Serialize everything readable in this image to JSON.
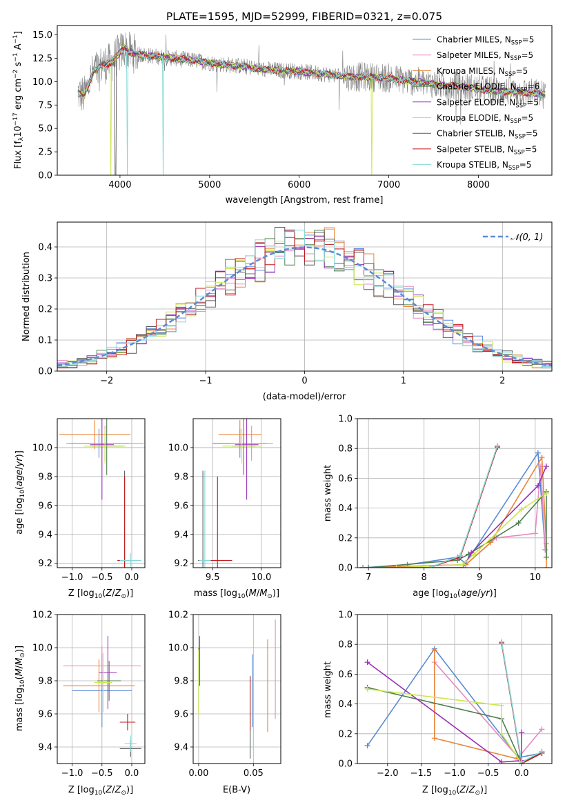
{
  "colors": {
    "chabrier_miles": "#5b8ad6",
    "salpeter_miles": "#e48bc0",
    "kroupa_miles": "#e8853a",
    "chabrier_elodie": "#4f7d4f",
    "salpeter_elodie": "#9a2fb8",
    "kroupa_elodie": "#c9e84a",
    "chabrier_stelib": "#5a5a5a",
    "salpeter_stelib": "#c21a1a",
    "kroupa_stelib": "#86d8d8",
    "gaussian": "#5b8ad6",
    "data": "#808080"
  },
  "chart_data": [
    {
      "id": "spectrum",
      "type": "line",
      "title": "PLATE=1595, MJD=52999, FIBERID=0321, z=0.075",
      "xlabel": "wavelength [Angstrom, rest frame]",
      "ylabel": "Flux [fλ10⁻¹⁷ erg cm⁻² s⁻¹ A⁻¹]",
      "xlim": [
        3300,
        8820
      ],
      "ylim": [
        0,
        16
      ],
      "xticks": [
        "4000",
        "5000",
        "6000",
        "7000",
        "8000"
      ],
      "yticks": [
        "0.0",
        "2.5",
        "5.0",
        "7.5",
        "10.0",
        "12.5",
        "15.0"
      ],
      "continuum": {
        "x": [
          3530,
          3600,
          3700,
          3800,
          3900,
          3950,
          4000,
          4050,
          4100,
          4200,
          4400,
          4600,
          4800,
          5000,
          5200,
          5400,
          5600,
          5800,
          6000,
          6200,
          6400,
          6600,
          6800,
          7000,
          7200,
          7400,
          7600,
          7800,
          8000,
          8200,
          8400,
          8600,
          8750
        ],
        "y": [
          8.8,
          8.5,
          11.0,
          11.8,
          12.0,
          12.6,
          13.1,
          13.6,
          13.2,
          12.9,
          12.7,
          12.5,
          12.3,
          12.0,
          11.8,
          11.6,
          11.3,
          11.2,
          11.1,
          10.9,
          10.7,
          10.5,
          10.5,
          10.4,
          10.1,
          9.9,
          9.6,
          9.5,
          9.2,
          9.0,
          8.9,
          8.8,
          8.6
        ]
      },
      "legend": [
        {
          "label": "Chabrier MILES, N",
          "sub": "SSP",
          "tail": "=5",
          "color_key": "chabrier_miles"
        },
        {
          "label": "Salpeter MILES, N",
          "sub": "SSP",
          "tail": "=5",
          "color_key": "salpeter_miles"
        },
        {
          "label": "Kroupa MILES, N",
          "sub": "SSP",
          "tail": "=5",
          "color_key": "kroupa_miles"
        },
        {
          "label": "Chabrier ELODIE, N",
          "sub": "SSP",
          "tail": "=6",
          "color_key": "chabrier_elodie"
        },
        {
          "label": "Salpeter ELODIE, N",
          "sub": "SSP",
          "tail": "=5",
          "color_key": "salpeter_elodie"
        },
        {
          "label": "Kroupa ELODIE, N",
          "sub": "SSP",
          "tail": "=5",
          "color_key": "kroupa_elodie"
        },
        {
          "label": "Chabrier STELIB, N",
          "sub": "SSP",
          "tail": "=5",
          "color_key": "chabrier_stelib"
        },
        {
          "label": "Salpeter STELIB, N",
          "sub": "SSP",
          "tail": "=5",
          "color_key": "salpeter_stelib"
        },
        {
          "label": "Kroupa STELIB, N",
          "sub": "SSP",
          "tail": "=5",
          "color_key": "kroupa_stelib"
        }
      ]
    },
    {
      "id": "residuals",
      "type": "line",
      "xlabel": "(data-model)/error",
      "ylabel": "Normed distribution",
      "xlim": [
        -2.5,
        2.5
      ],
      "ylim": [
        0,
        0.48
      ],
      "xticks": [
        -2,
        -1,
        0,
        1,
        2
      ],
      "yticks": [
        0.0,
        0.1,
        0.2,
        0.3,
        0.4
      ],
      "legend": "𝒩(0, 1)",
      "gaussian": {
        "mean": 0,
        "sigma": 1
      }
    },
    {
      "id": "age_vs_Z",
      "type": "scatter",
      "xlabel": "Z [log10(Z/Z⊙)]",
      "ylabel": "age  [log10(age/yr)]",
      "xlim": [
        -1.25,
        0.22
      ],
      "ylim": [
        9.17,
        10.2
      ],
      "xticks": [
        -1.0,
        -0.5,
        0.0
      ],
      "yticks": [
        9.2,
        9.4,
        9.6,
        9.8,
        10.0
      ],
      "points": [
        {
          "x": -0.55,
          "y": 10.03,
          "xerr": 0.5,
          "yerr": 0.1,
          "c": "chabrier_miles"
        },
        {
          "x": -0.45,
          "y": 10.03,
          "xerr": 0.65,
          "yerr": 0.12,
          "c": "salpeter_miles"
        },
        {
          "x": -0.62,
          "y": 10.09,
          "xerr": 0.6,
          "yerr": 0.1,
          "c": "kroupa_miles"
        },
        {
          "x": -0.42,
          "y": 10.01,
          "xerr": 0.28,
          "yerr": 0.2,
          "c": "chabrier_elodie"
        },
        {
          "x": -0.5,
          "y": 10.02,
          "xerr": 0.2,
          "yerr": 0.38,
          "c": "salpeter_elodie"
        },
        {
          "x": -0.45,
          "y": 10.01,
          "xerr": 0.35,
          "yerr": 0.12,
          "c": "kroupa_elodie"
        },
        {
          "x": -0.12,
          "y": 9.22,
          "xerr": 0.12,
          "yerr": 0.62,
          "c": "chabrier_stelib"
        },
        {
          "x": -0.12,
          "y": 9.22,
          "xerr": 0.12,
          "yerr": 0.58,
          "c": "salpeter_stelib"
        },
        {
          "x": -0.02,
          "y": 9.22,
          "xerr": 0.18,
          "yerr": 0.05,
          "c": "kroupa_stelib"
        }
      ]
    },
    {
      "id": "age_vs_mass",
      "type": "scatter",
      "xlabel": "mass [log10(M/M⊙)]",
      "ylabel": "",
      "xlim": [
        9.3,
        10.2
      ],
      "ylim": [
        9.17,
        10.2
      ],
      "xticks": [
        9.5,
        10.0
      ],
      "yticks": [
        9.2,
        9.4,
        9.6,
        9.8,
        10.0
      ],
      "points": [
        {
          "x": 9.78,
          "y": 10.03,
          "xerr": 0.28,
          "yerr": 0.1,
          "c": "chabrier_miles"
        },
        {
          "x": 9.9,
          "y": 10.03,
          "xerr": 0.22,
          "yerr": 0.12,
          "c": "salpeter_miles"
        },
        {
          "x": 9.78,
          "y": 10.09,
          "xerr": 0.22,
          "yerr": 0.1,
          "c": "kroupa_miles"
        },
        {
          "x": 9.82,
          "y": 10.01,
          "xerr": 0.12,
          "yerr": 0.2,
          "c": "chabrier_elodie"
        },
        {
          "x": 9.85,
          "y": 10.02,
          "xerr": 0.12,
          "yerr": 0.38,
          "c": "salpeter_elodie"
        },
        {
          "x": 9.8,
          "y": 10.01,
          "xerr": 0.2,
          "yerr": 0.12,
          "c": "kroupa_elodie"
        },
        {
          "x": 9.4,
          "y": 9.22,
          "xerr": 0.05,
          "yerr": 0.62,
          "c": "chabrier_stelib"
        },
        {
          "x": 9.55,
          "y": 9.22,
          "xerr": 0.15,
          "yerr": 0.58,
          "c": "salpeter_stelib"
        },
        {
          "x": 9.42,
          "y": 9.22,
          "xerr": 0.06,
          "yerr": 0.62,
          "c": "kroupa_stelib"
        }
      ]
    },
    {
      "id": "weight_vs_age",
      "type": "line",
      "xlabel": "age  [log10(age/yr)]",
      "ylabel": "mass weight",
      "xlim": [
        6.8,
        10.3
      ],
      "ylim": [
        0,
        1.0
      ],
      "xticks": [
        7,
        8,
        9,
        10
      ],
      "yticks": [
        0.0,
        0.2,
        0.4,
        0.6,
        0.8,
        1.0
      ],
      "series": [
        {
          "c": "chabrier_miles",
          "x": [
            6.9,
            7.7,
            8.6,
            8.75,
            10.05,
            10.18
          ],
          "y": [
            0.0,
            0.02,
            0.07,
            0.03,
            0.77,
            0.12
          ]
        },
        {
          "c": "salpeter_miles",
          "x": [
            6.9,
            8.75,
            9.3,
            10.0,
            10.1,
            10.18
          ],
          "y": [
            0.0,
            0.02,
            0.2,
            0.23,
            0.68,
            0.12
          ]
        },
        {
          "c": "kroupa_miles",
          "x": [
            6.9,
            8.75,
            9.2,
            10.12,
            10.2,
            10.2
          ],
          "y": [
            0.0,
            0.02,
            0.17,
            0.74,
            0.16,
            0.0
          ]
        },
        {
          "c": "chabrier_elodie",
          "x": [
            7.0,
            8.6,
            8.8,
            9.7,
            10.2,
            10.2
          ],
          "y": [
            0.0,
            0.05,
            0.09,
            0.3,
            0.51,
            0.07
          ]
        },
        {
          "c": "salpeter_elodie",
          "x": [
            7.5,
            8.7,
            8.85,
            10.05,
            10.2
          ],
          "y": [
            0.0,
            0.0,
            0.1,
            0.55,
            0.68
          ]
        },
        {
          "c": "kroupa_elodie",
          "x": [
            7.5,
            8.7,
            8.9,
            9.75,
            10.2
          ],
          "y": [
            0.0,
            0.02,
            0.09,
            0.39,
            0.5
          ]
        },
        {
          "c": "chabrier_stelib",
          "x": [
            6.9,
            8.1,
            8.65,
            9.32
          ],
          "y": [
            0.0,
            0.0,
            0.08,
            0.81
          ]
        },
        {
          "c": "salpeter_stelib",
          "x": [
            6.9,
            8.1,
            8.65,
            9.32
          ],
          "y": [
            0.0,
            0.0,
            0.07,
            0.81
          ]
        },
        {
          "c": "kroupa_stelib",
          "x": [
            6.9,
            8.1,
            8.65,
            9.32
          ],
          "y": [
            0.0,
            0.0,
            0.08,
            0.82
          ]
        }
      ]
    },
    {
      "id": "mass_vs_Z",
      "type": "scatter",
      "xlabel": "Z [log10(Z/Z⊙)]",
      "ylabel": "mass [log10(M/M⊙)]",
      "xlim": [
        -1.25,
        0.22
      ],
      "ylim": [
        9.3,
        10.2
      ],
      "xticks": [
        -1.0,
        -0.5,
        0.0
      ],
      "yticks": [
        9.4,
        9.6,
        9.8,
        10.0,
        10.2
      ],
      "points": [
        {
          "x": -0.5,
          "y": 9.74,
          "xerr": 0.5,
          "yerr": 0.22,
          "c": "chabrier_miles"
        },
        {
          "x": -0.5,
          "y": 9.89,
          "xerr": 0.65,
          "yerr": 0.12,
          "c": "salpeter_miles"
        },
        {
          "x": -0.55,
          "y": 9.77,
          "xerr": 0.6,
          "yerr": 0.16,
          "c": "kroupa_miles"
        },
        {
          "x": -0.38,
          "y": 9.8,
          "xerr": 0.2,
          "yerr": 0.12,
          "c": "chabrier_elodie"
        },
        {
          "x": -0.4,
          "y": 9.85,
          "xerr": 0.15,
          "yerr": 0.22,
          "c": "salpeter_elodie"
        },
        {
          "x": -0.48,
          "y": 9.79,
          "xerr": 0.15,
          "yerr": 0.18,
          "c": "kroupa_elodie"
        },
        {
          "x": -0.02,
          "y": 9.39,
          "xerr": 0.18,
          "yerr": 0.05,
          "c": "chabrier_stelib"
        },
        {
          "x": -0.07,
          "y": 9.55,
          "xerr": 0.13,
          "yerr": 0.05,
          "c": "salpeter_stelib"
        },
        {
          "x": -0.02,
          "y": 9.42,
          "xerr": 0.1,
          "yerr": 0.05,
          "c": "kroupa_stelib"
        }
      ]
    },
    {
      "id": "mass_vs_ebv",
      "type": "scatter",
      "xlabel": "E(B-V)",
      "ylabel": "",
      "xlim": [
        -0.005,
        0.075
      ],
      "ylim": [
        9.3,
        10.2
      ],
      "xticks": [
        0.0,
        0.05
      ],
      "yticks": [
        9.4,
        9.6,
        9.8,
        10.0,
        10.2
      ],
      "points": [
        {
          "x": 0.049,
          "y": 9.74,
          "xerr": 0.0,
          "yerr": 0.22,
          "c": "chabrier_miles"
        },
        {
          "x": 0.07,
          "y": 9.87,
          "xerr": 0.0,
          "yerr": 0.3,
          "c": "salpeter_miles"
        },
        {
          "x": 0.063,
          "y": 9.77,
          "xerr": 0.0,
          "yerr": 0.28,
          "c": "kroupa_miles"
        },
        {
          "x": 0.0,
          "y": 9.8,
          "xerr": 0.0,
          "yerr": 0.2,
          "c": "chabrier_elodie"
        },
        {
          "x": 0.001,
          "y": 9.92,
          "xerr": 0.0,
          "yerr": 0.15,
          "c": "salpeter_elodie"
        },
        {
          "x": 0.0,
          "y": 9.79,
          "xerr": 0.0,
          "yerr": 0.2,
          "c": "kroupa_elodie"
        },
        {
          "x": 0.047,
          "y": 9.58,
          "xerr": 0.0,
          "yerr": 0.25,
          "c": "chabrier_stelib"
        },
        {
          "x": 0.047,
          "y": 9.66,
          "xerr": 0.0,
          "yerr": 0.16,
          "c": "salpeter_stelib"
        },
        {
          "x": 0.05,
          "y": 9.6,
          "xerr": 0.0,
          "yerr": 0.22,
          "c": "kroupa_stelib"
        }
      ]
    },
    {
      "id": "weight_vs_Z",
      "type": "line",
      "xlabel": "Z [log10(Z/Z⊙)]",
      "ylabel": "mass weight",
      "xlim": [
        -2.45,
        0.45
      ],
      "ylim": [
        0,
        1.0
      ],
      "xticks": [
        -2.0,
        -1.5,
        -1.0,
        -0.5,
        0.0
      ],
      "yticks": [
        0.0,
        0.2,
        0.4,
        0.6,
        0.8,
        1.0
      ],
      "series": [
        {
          "c": "chabrier_miles",
          "x": [
            -2.3,
            -1.3,
            -0.05,
            0.3
          ],
          "y": [
            0.12,
            0.77,
            0.04,
            0.07
          ]
        },
        {
          "c": "salpeter_miles",
          "x": [
            -1.3,
            -0.05,
            0.3
          ],
          "y": [
            0.68,
            0.04,
            0.23
          ]
        },
        {
          "c": "kroupa_miles",
          "x": [
            -1.3,
            -1.3,
            -0.05,
            0.0
          ],
          "y": [
            0.76,
            0.17,
            0.03,
            0.0
          ]
        },
        {
          "c": "chabrier_elodie",
          "x": [
            -2.3,
            -0.3,
            0.0,
            0.3
          ],
          "y": [
            0.51,
            0.3,
            0.0,
            0.07
          ]
        },
        {
          "c": "salpeter_elodie",
          "x": [
            -2.3,
            -0.3,
            0.0,
            0.0
          ],
          "y": [
            0.68,
            0.01,
            0.02,
            0.21
          ]
        },
        {
          "c": "kroupa_elodie",
          "x": [
            -2.3,
            -0.3,
            -0.3,
            0.0
          ],
          "y": [
            0.5,
            0.39,
            0.2,
            0.0
          ]
        },
        {
          "c": "chabrier_stelib",
          "x": [
            -0.3,
            0.0,
            0.3
          ],
          "y": [
            0.81,
            0.0,
            0.08
          ]
        },
        {
          "c": "salpeter_stelib",
          "x": [
            -0.3,
            0.0,
            0.3
          ],
          "y": [
            0.81,
            0.0,
            0.07
          ]
        },
        {
          "c": "kroupa_stelib",
          "x": [
            -0.3,
            0.0,
            0.3
          ],
          "y": [
            0.82,
            0.01,
            0.08
          ]
        }
      ]
    }
  ]
}
